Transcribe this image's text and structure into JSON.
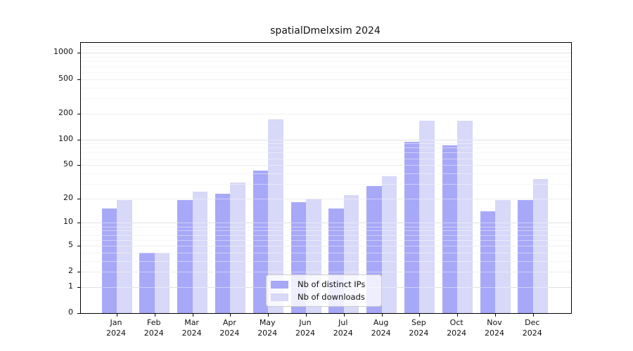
{
  "chart_data": {
    "type": "bar",
    "title": "spatialDmelxsim 2024",
    "categories": [
      "Jan",
      "Feb",
      "Mar",
      "Apr",
      "May",
      "Jun",
      "Jul",
      "Aug",
      "Sep",
      "Oct",
      "Nov",
      "Dec"
    ],
    "year_label": "2024",
    "series": [
      {
        "name": "Nb of distinct IPs",
        "color": "#a8a8f8",
        "values": [
          15,
          4,
          19,
          23,
          43,
          18,
          15,
          28,
          94,
          86,
          14,
          19
        ]
      },
      {
        "name": "Nb of downloads",
        "color": "#d8d8f8",
        "values": [
          19,
          4,
          24,
          31,
          172,
          20,
          22,
          37,
          164,
          164,
          19,
          34
        ]
      }
    ],
    "y_ticks": [
      0,
      1,
      2,
      5,
      10,
      20,
      50,
      100,
      200,
      500,
      1000
    ],
    "y_minor_ticks": [
      3,
      4,
      6,
      7,
      8,
      9,
      30,
      40,
      60,
      70,
      80,
      90,
      300,
      400,
      600,
      700,
      800,
      900,
      1100,
      1200
    ],
    "scale": "log1p",
    "ylim": [
      0,
      1300
    ],
    "grid": true,
    "legend_position": "lower center"
  }
}
